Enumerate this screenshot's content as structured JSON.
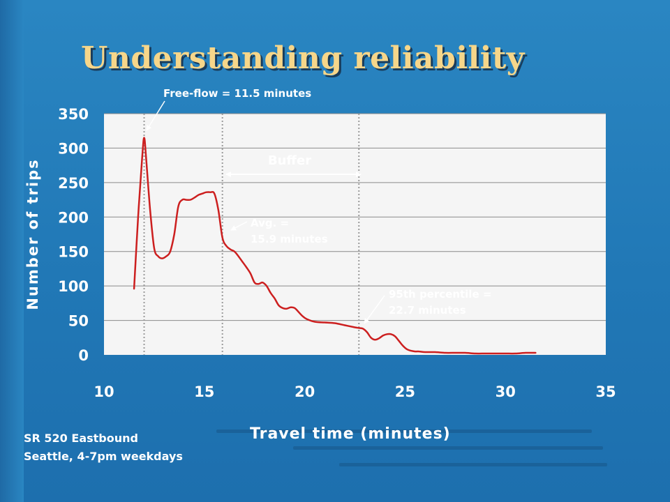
{
  "slide": {
    "title": "Understanding reliability",
    "footnote_line1": "SR 520 Eastbound",
    "footnote_line2": "Seattle, 4-7pm weekdays"
  },
  "colors": {
    "background": "#2178b6",
    "title": "#f6d68a",
    "series": "#cc1f1f",
    "plot_area": "#f5f5f5",
    "annotation_text": "#ffffff"
  },
  "chart_data": {
    "type": "line",
    "title": "",
    "xlabel": "Travel time (minutes)",
    "ylabel": "Number of trips",
    "xlim": [
      10,
      35
    ],
    "ylim": [
      0,
      350
    ],
    "xticks": [
      "10",
      "15",
      "20",
      "25",
      "30",
      "35"
    ],
    "yticks": [
      "0",
      "50",
      "100",
      "150",
      "200",
      "250",
      "300",
      "350"
    ],
    "grid": "horizontal",
    "legend": "none",
    "series": [
      {
        "x": [
          11.5,
          11.7,
          11.9,
          12.0,
          12.1,
          12.3,
          12.5,
          12.7,
          12.9,
          13.1,
          13.3,
          13.5,
          13.7,
          13.9,
          14.1,
          14.3,
          14.5,
          14.7,
          14.9,
          15.1,
          15.3,
          15.5,
          15.7,
          15.9,
          16.1,
          16.3,
          16.5,
          16.7,
          16.9,
          17.1,
          17.3,
          17.5,
          17.7,
          17.9,
          18.1,
          18.3,
          18.5,
          18.7,
          18.9,
          19.1,
          19.3,
          19.5,
          19.7,
          19.9,
          20.1,
          20.5,
          21.0,
          21.5,
          22.0,
          22.5,
          22.7,
          22.9,
          23.1,
          23.3,
          23.5,
          23.7,
          23.9,
          24.1,
          24.3,
          24.5,
          24.7,
          24.9,
          25.1,
          25.3,
          25.5,
          25.7,
          26.0,
          26.5,
          27.0,
          27.5,
          28.0,
          28.5,
          29.0,
          29.5,
          30.0,
          30.5,
          31.0,
          31.5
        ],
        "y": [
          96,
          200,
          285,
          315,
          285,
          210,
          155,
          143,
          140,
          143,
          150,
          175,
          215,
          225,
          225,
          225,
          228,
          232,
          234,
          236,
          236,
          234,
          210,
          170,
          158,
          153,
          150,
          143,
          135,
          127,
          118,
          105,
          103,
          105,
          100,
          90,
          82,
          72,
          68,
          67,
          69,
          68,
          62,
          56,
          52,
          48,
          47,
          46,
          43,
          40,
          39,
          38,
          33,
          25,
          22,
          24,
          28,
          30,
          30,
          27,
          20,
          13,
          8,
          6,
          5,
          5,
          4,
          4,
          3,
          3,
          3,
          2,
          2,
          2,
          2,
          2,
          3,
          3
        ]
      }
    ],
    "reference_lines_x": [
      12.0,
      15.9,
      22.7
    ],
    "annotations": {
      "free_flow": "Free-flow = 11.5 minutes",
      "buffer": "Buffer",
      "avg_line1": "Avg. =",
      "avg_line2": "15.9 minutes",
      "p95_line1": "95th percentile =",
      "p95_line2": "22.7 minutes"
    }
  }
}
